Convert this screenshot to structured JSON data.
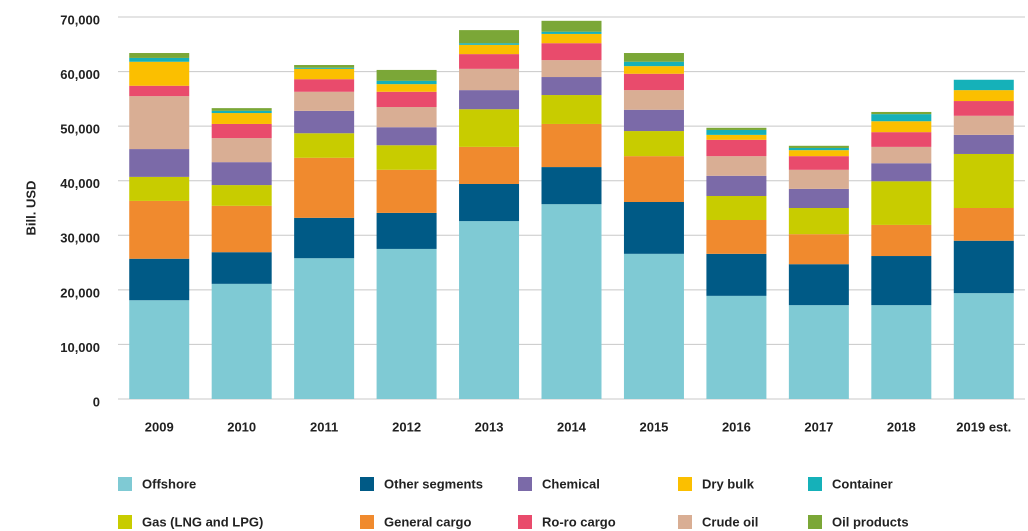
{
  "chart_data": {
    "type": "stacked_bar",
    "y_label": "Bill. USD",
    "categories": [
      "2009",
      "2010",
      "2011",
      "2012",
      "2013",
      "2014",
      "2015",
      "2016",
      "2017",
      "2018",
      "2019 est."
    ],
    "ylim": [
      0,
      70000
    ],
    "yticks": [
      0,
      {
        "value": 10000,
        "label": "10,000"
      },
      {
        "value": 20000,
        "label": "20,000"
      },
      {
        "value": 30000,
        "label": "30,000"
      },
      {
        "value": 40000,
        "label": "40,000"
      },
      {
        "value": 50000,
        "label": "50,000"
      },
      {
        "value": 60000,
        "label": "60,000"
      },
      {
        "value": 70000,
        "label": "70,000"
      }
    ],
    "grid": true,
    "series": [
      {
        "name": "Offshore",
        "color": "#7fcad4",
        "values": [
          18100,
          21100,
          25800,
          27500,
          32600,
          35700,
          26600,
          18900,
          17200,
          17200,
          19400
        ]
      },
      {
        "name": "Other segments",
        "color": "#005a86",
        "values": [
          7600,
          5800,
          7400,
          6600,
          6800,
          6800,
          9500,
          7700,
          7500,
          9000,
          9600
        ]
      },
      {
        "name": "General cargo",
        "color": "#f08a2e",
        "values": [
          10600,
          8500,
          11000,
          7900,
          6800,
          7900,
          8400,
          6200,
          5500,
          5700,
          6000
        ]
      },
      {
        "name": "Gas (LNG and LPG)",
        "color": "#c8cc00",
        "values": [
          4400,
          3800,
          4500,
          4500,
          6900,
          5300,
          4600,
          4400,
          4800,
          8000,
          9900
        ]
      },
      {
        "name": "Chemical",
        "color": "#7b6aa8",
        "values": [
          5100,
          4200,
          4100,
          3300,
          3500,
          3300,
          3900,
          3700,
          3500,
          3300,
          3500
        ]
      },
      {
        "name": "Crude oil",
        "color": "#d9ae94",
        "values": [
          9700,
          4400,
          3500,
          3700,
          3900,
          3100,
          3600,
          3600,
          3500,
          3000,
          3500
        ]
      },
      {
        "name": "Ro-ro cargo",
        "color": "#e94b6c",
        "values": [
          1900,
          2600,
          2300,
          2800,
          2700,
          3100,
          3000,
          3000,
          2500,
          2700,
          2700
        ]
      },
      {
        "name": "Dry bulk",
        "color": "#fbbf00",
        "values": [
          4400,
          2000,
          1900,
          1400,
          1700,
          1700,
          1400,
          900,
          1100,
          2000,
          2000
        ]
      },
      {
        "name": "Container",
        "color": "#15b1b9",
        "values": [
          700,
          400,
          200,
          600,
          300,
          400,
          800,
          900,
          400,
          1300,
          1900
        ]
      },
      {
        "name": "Oil products",
        "color": "#7ba737",
        "values": [
          900,
          500,
          500,
          2000,
          2400,
          2000,
          1600,
          400,
          400,
          400,
          0
        ]
      }
    ]
  }
}
